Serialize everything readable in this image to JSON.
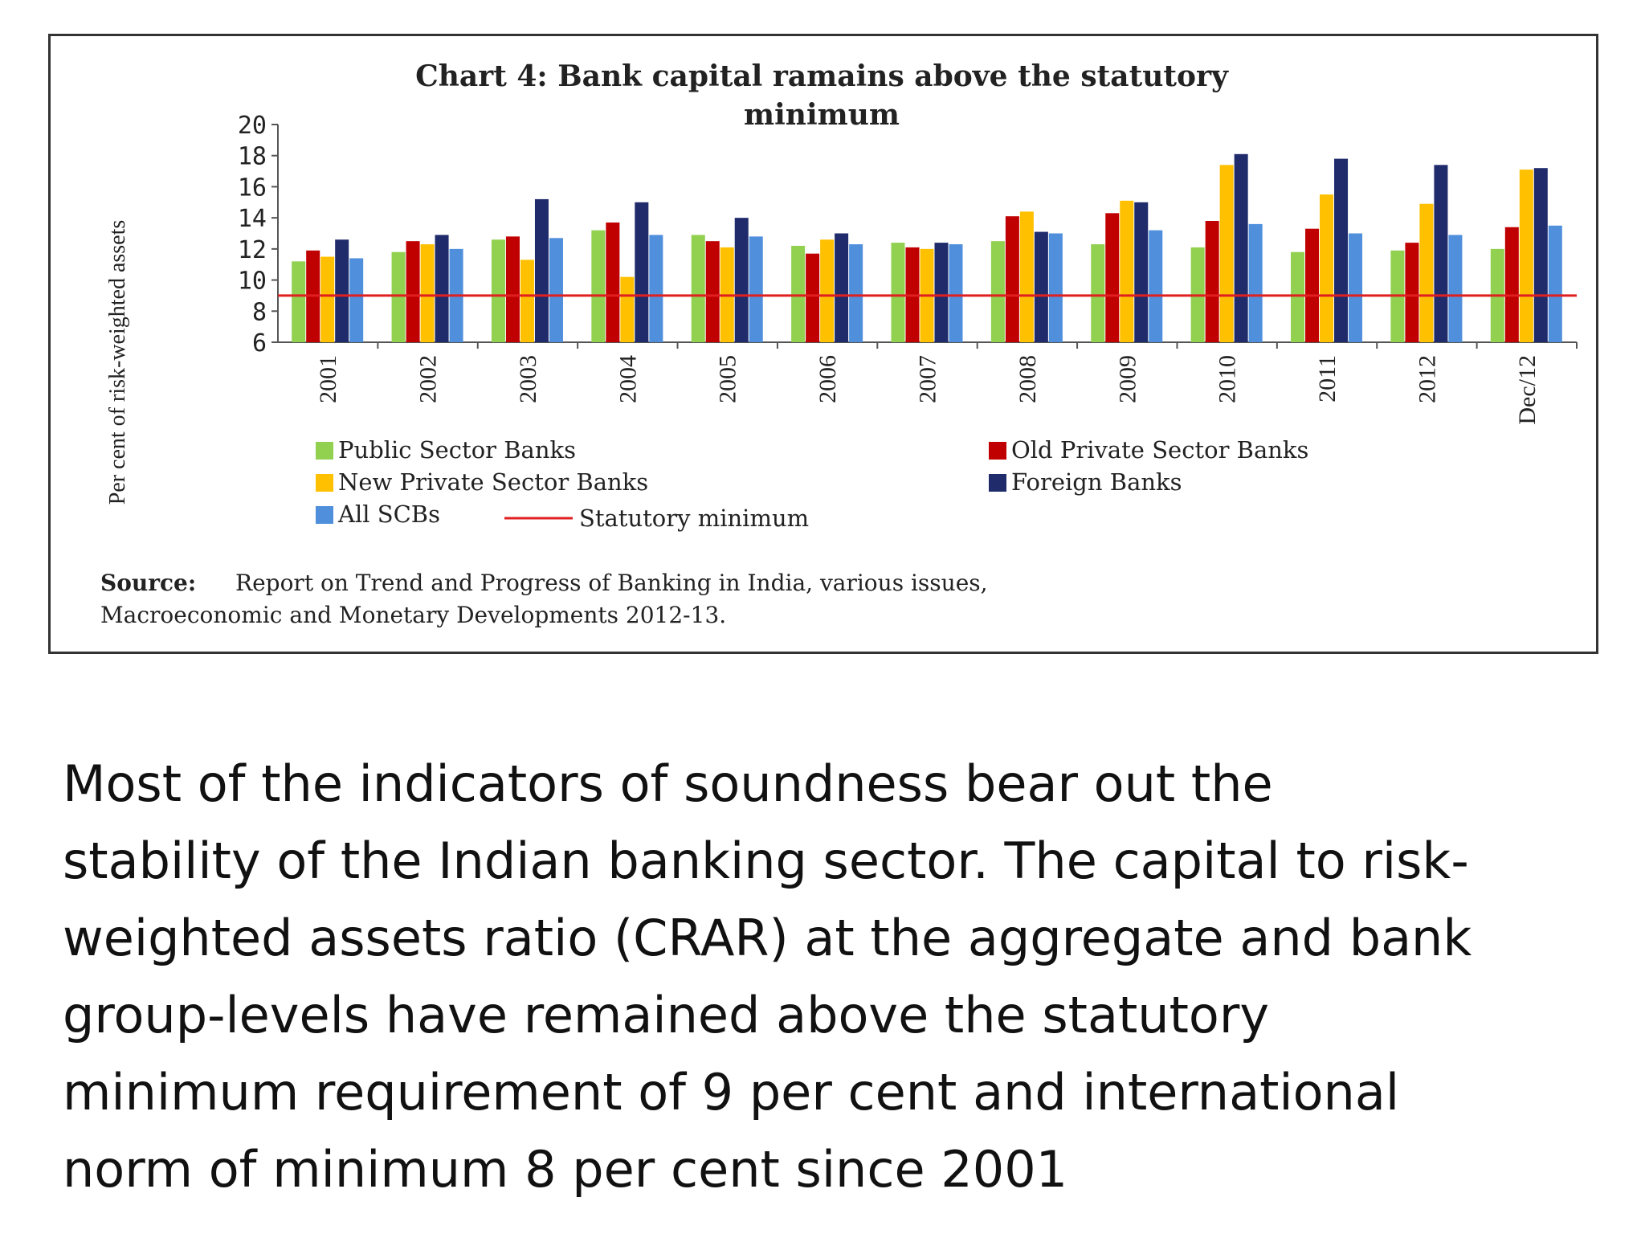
{
  "chart_data": {
    "type": "bar",
    "title_line1": "Chart 4: Bank capital ramains above the statutory",
    "title_line2": "minimum",
    "ylabel": "Per cent of risk-weighted assets",
    "ylim": [
      6,
      20
    ],
    "yticks": [
      6,
      8,
      10,
      12,
      14,
      16,
      18,
      20
    ],
    "categories": [
      "2001",
      "2002",
      "2003",
      "2004",
      "2005",
      "2006",
      "2007",
      "2008",
      "2009",
      "2010",
      "2011",
      "2012",
      "Dec/12"
    ],
    "series": [
      {
        "name": "Public Sector Banks",
        "color": "#92d050",
        "values": [
          11.2,
          11.8,
          12.6,
          13.2,
          12.9,
          12.2,
          12.4,
          12.5,
          12.3,
          12.1,
          11.8,
          11.9,
          12.0
        ]
      },
      {
        "name": "Old Private Sector Banks",
        "color": "#c00000",
        "values": [
          11.9,
          12.5,
          12.8,
          13.7,
          12.5,
          11.7,
          12.1,
          14.1,
          14.3,
          13.8,
          13.3,
          12.4,
          13.4
        ]
      },
      {
        "name": "New Private Sector Banks",
        "color": "#ffc000",
        "values": [
          11.5,
          12.3,
          11.3,
          10.2,
          12.1,
          12.6,
          12.0,
          14.4,
          15.1,
          17.4,
          15.5,
          14.9,
          17.1
        ]
      },
      {
        "name": "Foreign Banks",
        "color": "#1f2b6b",
        "values": [
          12.6,
          12.9,
          15.2,
          15.0,
          14.0,
          13.0,
          12.4,
          13.1,
          15.0,
          18.1,
          17.8,
          17.4,
          17.2
        ]
      },
      {
        "name": "All SCBs",
        "color": "#4f8fdc",
        "values": [
          11.4,
          12.0,
          12.7,
          12.9,
          12.8,
          12.3,
          12.3,
          13.0,
          13.2,
          13.6,
          13.0,
          12.9,
          13.5
        ]
      }
    ],
    "reference_line": {
      "name": "Statutory minimum",
      "value": 9,
      "color": "#e02020"
    },
    "source_label": "Source:",
    "source_line1": "Report on Trend and Progress of Banking in India, various issues,",
    "source_line2": "Macroeconomic and Monetary Developments 2012-13.",
    "grid": false
  },
  "text": {
    "line1": "Most of the indicators of soundness bear out the",
    "line2": "stability of the Indian banking sector. The capital to risk-",
    "line3": "weighted assets ratio (CRAR) at the aggregate and bank",
    "line4": "group-levels have remained above the statutory",
    "line5": "minimum requirement of 9 per cent and international",
    "line6": "norm of minimum 8 per cent since 2001"
  }
}
